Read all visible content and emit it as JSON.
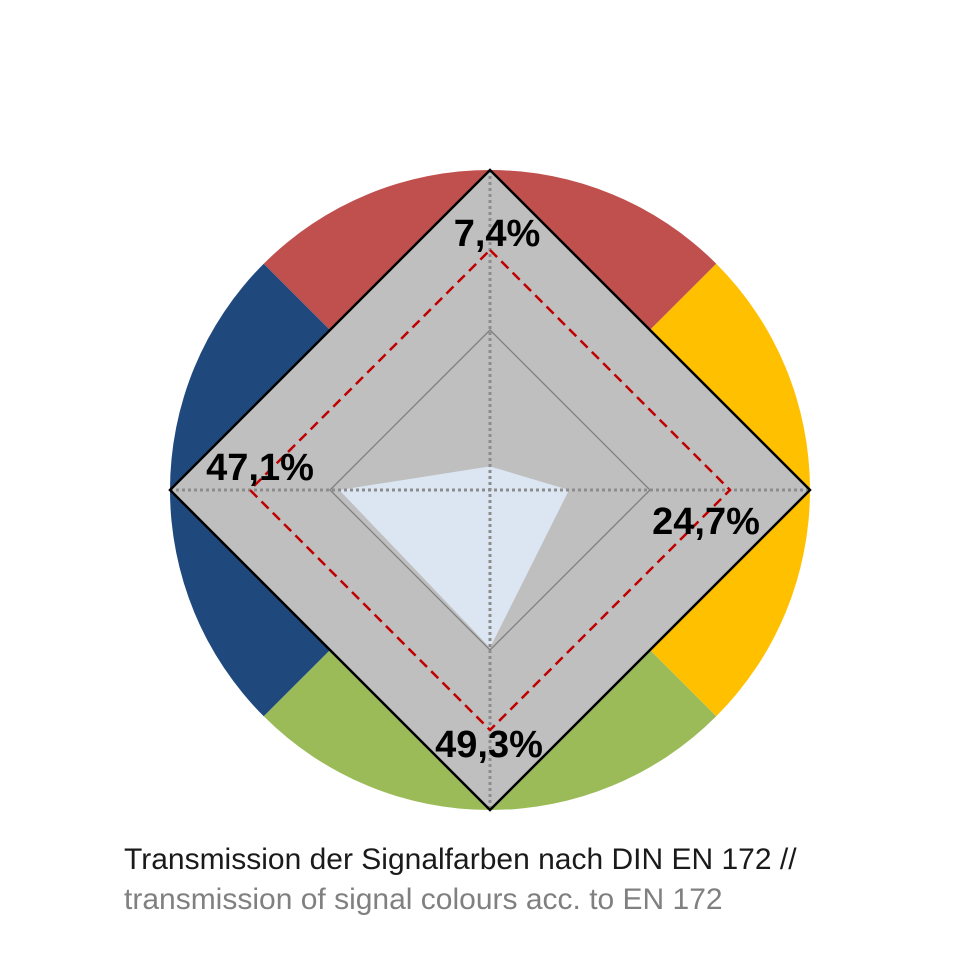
{
  "chart_data": {
    "type": "radar",
    "axes": [
      "red",
      "yellow",
      "green",
      "blue"
    ],
    "colors": {
      "red": "#C0504D",
      "yellow": "#FFC000",
      "green": "#9BBB59",
      "blue": "#1F497D",
      "envelope": "#BFBFBF",
      "measured": "#DCE6F2",
      "limit_line": "#C00000"
    },
    "scale_max": 100,
    "inner_ring": 50,
    "series": [
      {
        "values": [
          7.4,
          24.7,
          49.3,
          47.1
        ],
        "labels": [
          "7,4%",
          "24,7%",
          "49,3%",
          "47,1%"
        ]
      }
    ],
    "limit_values": [
      75,
      75,
      75,
      75
    ]
  },
  "caption": {
    "line1": "Transmission der Signalfarben nach DIN EN 172 //",
    "line2": "transmission of signal colours acc. to EN 172",
    "line1_color": "#1a1a1a",
    "line2_color": "#808080"
  }
}
